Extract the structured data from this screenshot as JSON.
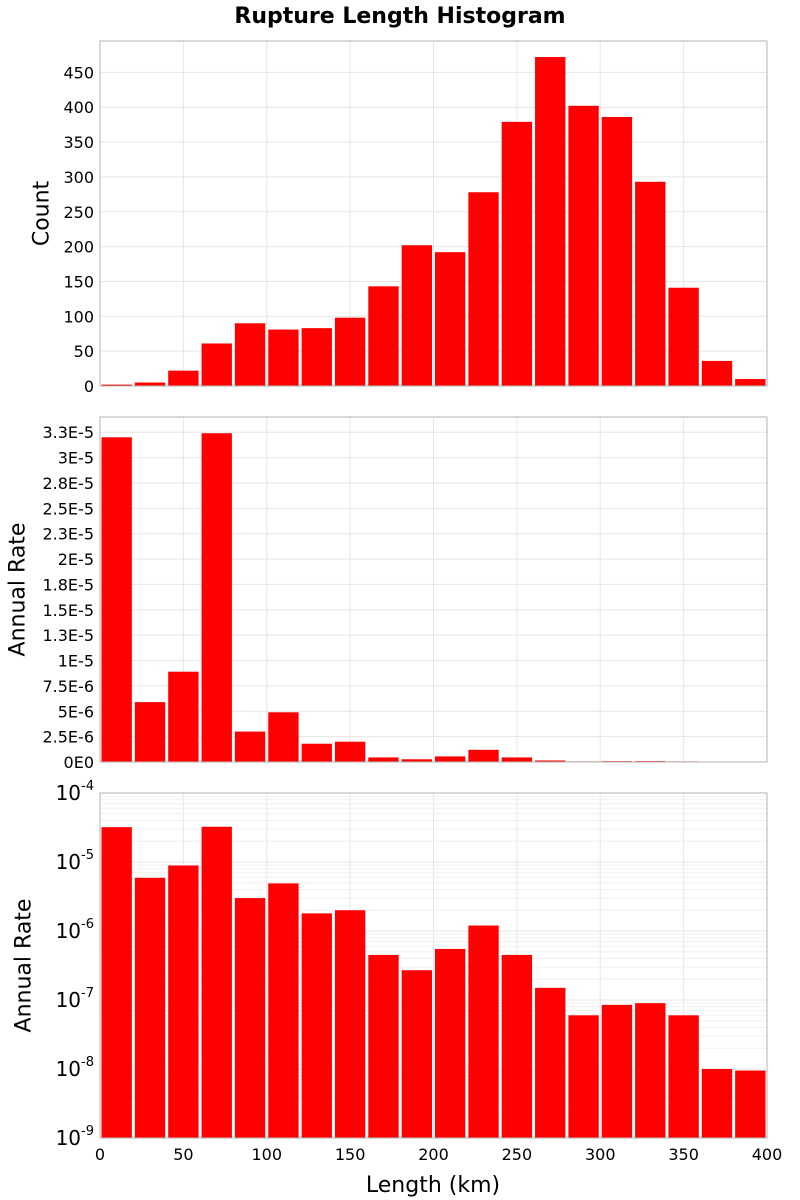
{
  "chart_data": {
    "title": "Rupture Length Histogram",
    "type": "bar",
    "bin_centers": [
      10,
      30,
      50,
      70,
      90,
      110,
      130,
      150,
      170,
      190,
      210,
      230,
      250,
      270,
      290,
      310,
      330,
      350,
      370,
      390
    ],
    "bin_width": 20,
    "bar_color": "#ff0000",
    "xlabel": "Length (km)",
    "xlim": [
      0,
      400
    ],
    "xticks": [
      0,
      50,
      100,
      150,
      200,
      250,
      300,
      350,
      400
    ],
    "panels": [
      {
        "name": "count",
        "ylabel": "Count",
        "scale": "linear",
        "ylim": [
          0,
          495
        ],
        "yticks": [
          0,
          50,
          100,
          150,
          200,
          250,
          300,
          350,
          400,
          450
        ],
        "ytick_labels": [
          "0",
          "50",
          "100",
          "150",
          "200",
          "250",
          "300",
          "350",
          "400",
          "450"
        ],
        "values": [
          2,
          5,
          22,
          61,
          90,
          81,
          83,
          98,
          143,
          202,
          192,
          278,
          379,
          472,
          402,
          386,
          293,
          141,
          36,
          10
        ]
      },
      {
        "name": "annual-rate-linear",
        "ylabel": "Annual Rate",
        "scale": "linear",
        "ylim": [
          0,
          3.4e-05
        ],
        "yticks": [
          0,
          2.5e-06,
          5e-06,
          7.5e-06,
          1e-05,
          1.25e-05,
          1.5e-05,
          1.75e-05,
          2e-05,
          2.25e-05,
          2.5e-05,
          2.75e-05,
          3e-05,
          3.25e-05
        ],
        "ytick_labels": [
          "0E0",
          "2.5E-6",
          "5E-6",
          "7.5E-6",
          "1E-5",
          "1.3E-5",
          "1.5E-5",
          "1.8E-5",
          "2E-5",
          "2.3E-5",
          "2.5E-5",
          "2.8E-5",
          "3E-5",
          "3.3E-5"
        ],
        "values": [
          3.2e-05,
          5.9e-06,
          8.9e-06,
          3.24e-05,
          3e-06,
          4.9e-06,
          1.8e-06,
          2e-06,
          4.5e-07,
          2.7e-07,
          5.5e-07,
          1.2e-06,
          4.5e-07,
          1.5e-07,
          6e-08,
          8.5e-08,
          9e-08,
          6e-08,
          1e-08,
          9.5e-09
        ]
      },
      {
        "name": "annual-rate-log",
        "ylabel": "Annual Rate",
        "scale": "log",
        "ylim": [
          1e-09,
          0.0001
        ],
        "yticks": [
          1e-09,
          1e-08,
          1e-07,
          1e-06,
          1e-05,
          0.0001
        ],
        "ytick_labels": [
          "10|-9",
          "10|-8",
          "10|-7",
          "10|-6",
          "10|-5",
          "10|-4"
        ],
        "values": [
          3.2e-05,
          5.9e-06,
          8.9e-06,
          3.24e-05,
          3e-06,
          4.9e-06,
          1.8e-06,
          2e-06,
          4.5e-07,
          2.7e-07,
          5.5e-07,
          1.2e-06,
          4.5e-07,
          1.5e-07,
          6e-08,
          8.5e-08,
          9e-08,
          6e-08,
          1e-08,
          9.5e-09
        ]
      }
    ],
    "grid": true,
    "legend": "none"
  }
}
